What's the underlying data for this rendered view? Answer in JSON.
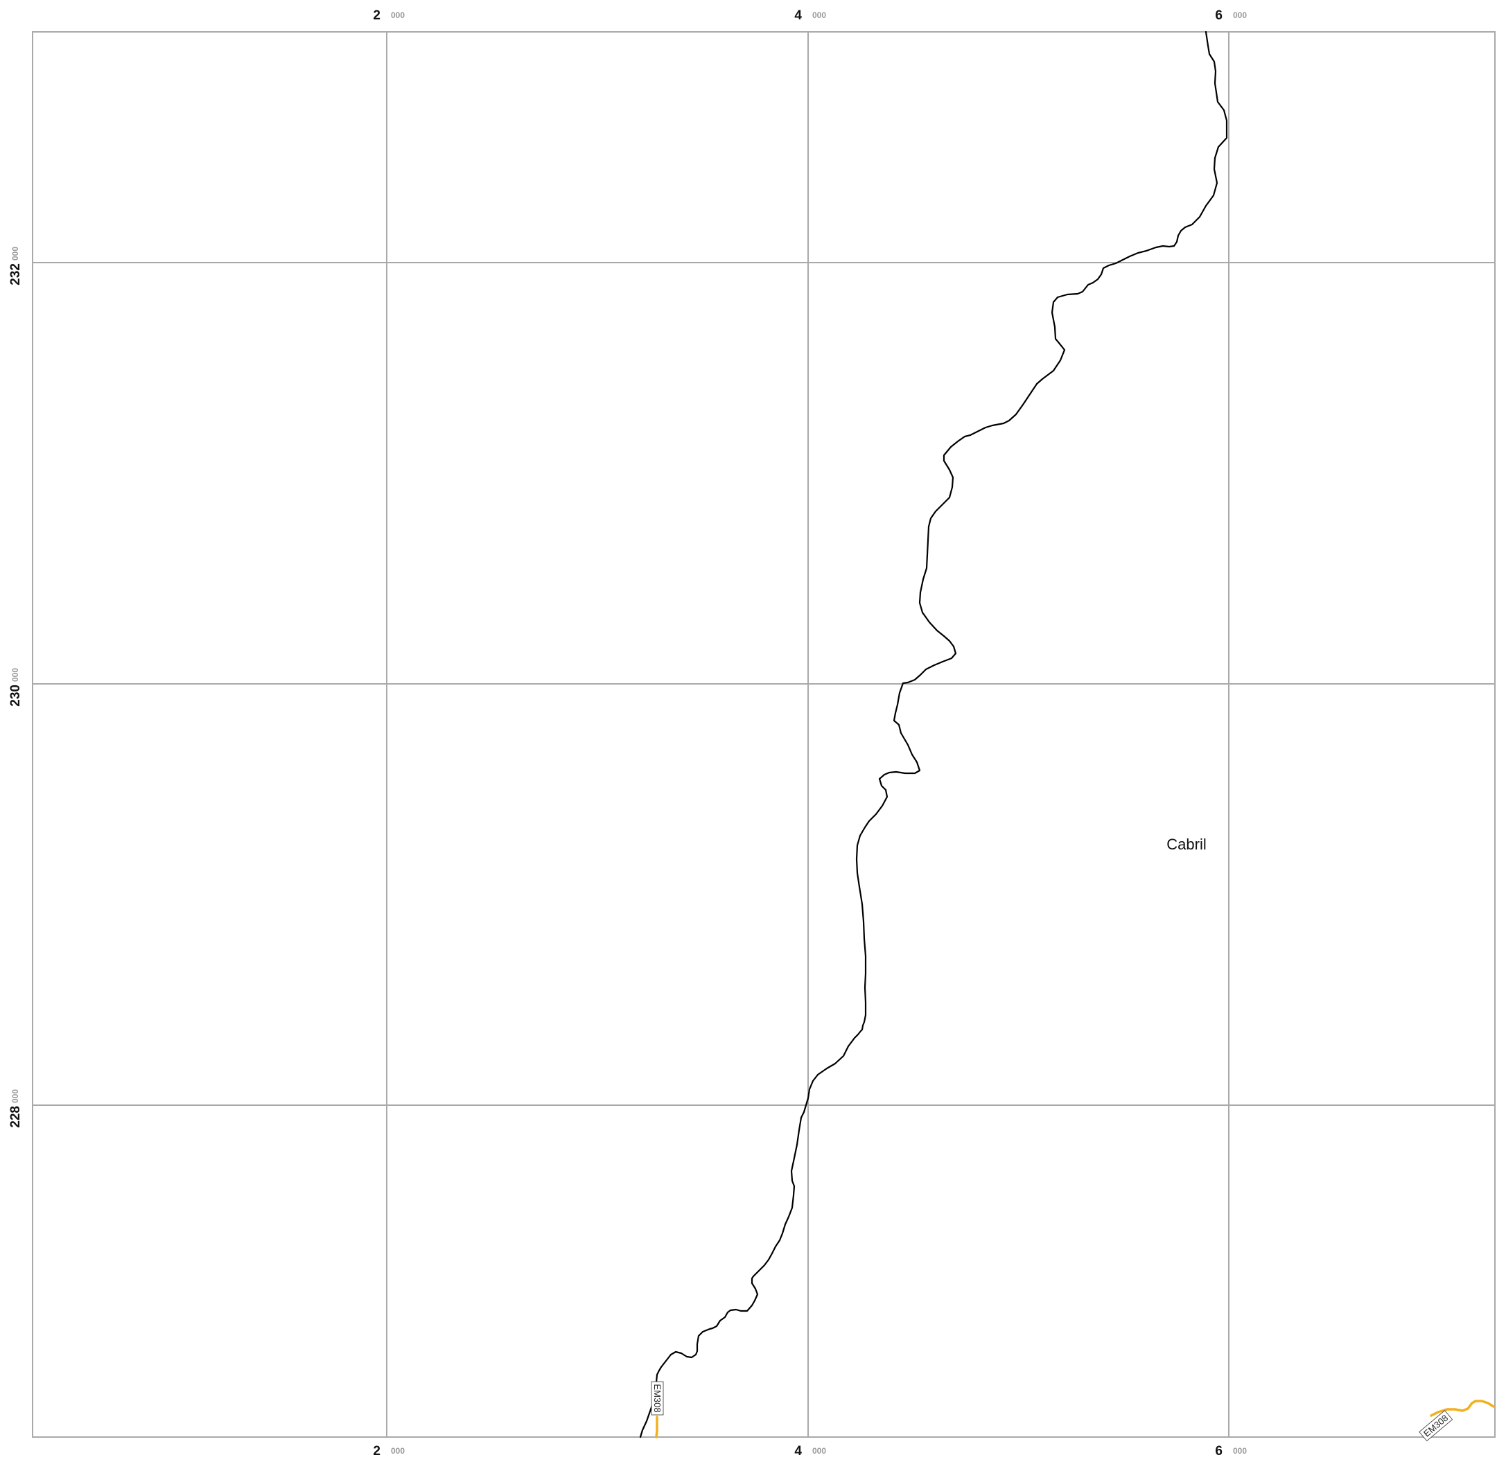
{
  "map": {
    "frame_color": "#a9a9a9",
    "grid": {
      "x_labels": [
        {
          "major": "2",
          "minor": "000"
        },
        {
          "major": "4",
          "minor": "000"
        },
        {
          "major": "6",
          "minor": "000"
        }
      ],
      "y_labels": [
        {
          "major": "232",
          "minor": "000"
        },
        {
          "major": "230",
          "minor": "000"
        },
        {
          "major": "228",
          "minor": "000"
        }
      ]
    },
    "place": {
      "name": "Cabril"
    },
    "road": {
      "ref": "EM308",
      "color": "#f2b01e"
    },
    "boundary": {
      "color": "#000000"
    }
  }
}
